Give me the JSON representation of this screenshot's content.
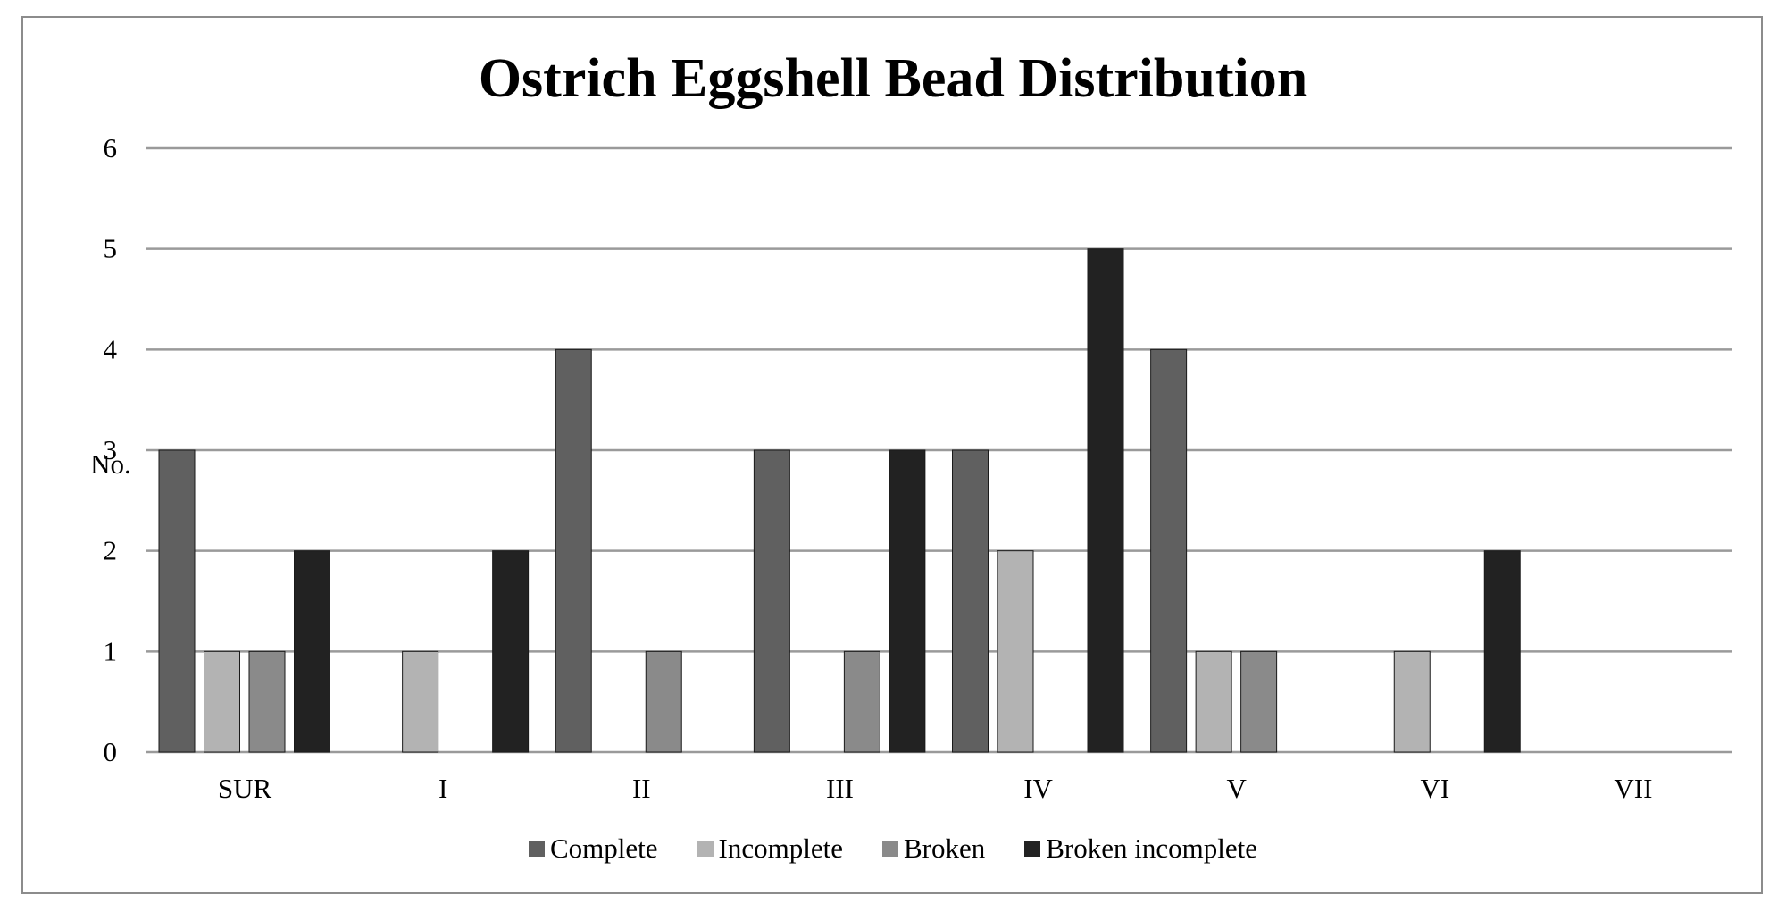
{
  "chart_data": {
    "type": "bar",
    "title": "Ostrich Eggshell Bead Distribution",
    "xlabel": "",
    "ylabel": "No.",
    "ylim": [
      0,
      6
    ],
    "yticks": [
      0,
      1,
      2,
      3,
      4,
      5,
      6
    ],
    "grid": true,
    "legend_position": "bottom",
    "categories": [
      "SUR",
      "I",
      "II",
      "III",
      "IV",
      "V",
      "VI",
      "VII"
    ],
    "series": [
      {
        "name": "Complete",
        "color": "#606060",
        "values": [
          3,
          0,
          4,
          3,
          3,
          4,
          0,
          0
        ]
      },
      {
        "name": "Incomplete",
        "color": "#b3b3b3",
        "values": [
          1,
          1,
          0,
          0,
          2,
          1,
          1,
          0
        ]
      },
      {
        "name": "Broken",
        "color": "#8a8a8a",
        "values": [
          1,
          0,
          1,
          1,
          0,
          1,
          0,
          0
        ]
      },
      {
        "name": "Broken incomplete",
        "color": "#222222",
        "values": [
          2,
          2,
          0,
          3,
          5,
          0,
          2,
          0
        ]
      }
    ]
  }
}
